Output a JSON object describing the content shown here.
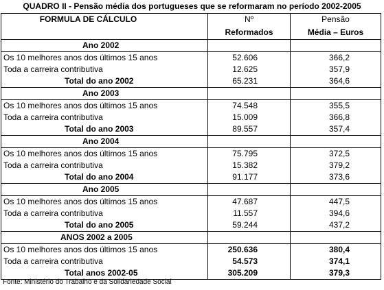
{
  "title": "QUADRO II - Pensão média dos portugueses que se reformaram no período 2002-2005",
  "header": {
    "col_formula": "FORMULA DE CÁLCULO",
    "col_reformados_line1": "Nº",
    "col_reformados_line2": "Reformados",
    "col_pensao_line1": "Pensão",
    "col_pensao_line2": "Média – Euros"
  },
  "years": [
    {
      "label": "Ano 2002",
      "rows": [
        {
          "label": "Os 10 melhores anos dos últimos 15 anos",
          "reformados": "52.606",
          "pensao": "366,2"
        },
        {
          "label": "Toda a carreira contributiva",
          "reformados": "12.625",
          "pensao": "357,9"
        }
      ],
      "total": {
        "label": "Total do ano 2002",
        "reformados": "65.231",
        "pensao": "364,6"
      }
    },
    {
      "label": "Ano 2003",
      "rows": [
        {
          "label": "Os 10 melhores anos dos últimos 15 anos",
          "reformados": "74.548",
          "pensao": "355,5"
        },
        {
          "label": "Toda a carreira contributiva",
          "reformados": "15.009",
          "pensao": "366,8"
        }
      ],
      "total": {
        "label": "Total do ano 2003",
        "reformados": "89.557",
        "pensao": "357,4"
      }
    },
    {
      "label": "Ano 2004",
      "rows": [
        {
          "label": "Os 10 melhores anos dos últimos 15 anos",
          "reformados": "75.795",
          "pensao": "372,5"
        },
        {
          "label": "Toda a carreira contributiva",
          "reformados": "15.382",
          "pensao": "379,2"
        }
      ],
      "total": {
        "label": "Total do ano 2004",
        "reformados": "91.177",
        "pensao": "373,6"
      }
    },
    {
      "label": "Ano 2005",
      "rows": [
        {
          "label": "Os 10 melhores anos dos últimos 15 anos",
          "reformados": "47.687",
          "pensao": "447,5"
        },
        {
          "label": "Toda a carreira contributiva",
          "reformados": "11.557",
          "pensao": "394,6"
        }
      ],
      "total": {
        "label": "Total do ano 2005",
        "reformados": "59.244",
        "pensao": "437,2"
      }
    }
  ],
  "grand": {
    "label": "ANOS 2002   a 2005",
    "rows": [
      {
        "label": "Os 10 melhores anos dos últimos 15 anos",
        "reformados": "250.636",
        "pensao": "380,4"
      },
      {
        "label": "Toda a carreira contributiva",
        "reformados": "54.573",
        "pensao": "374,1"
      }
    ],
    "total": {
      "label": "Total anos 2002-05",
      "reformados": "305.209",
      "pensao": "379,3"
    }
  },
  "source": "Fonte: Ministério do Trabalho e da Solidariedade Social"
}
